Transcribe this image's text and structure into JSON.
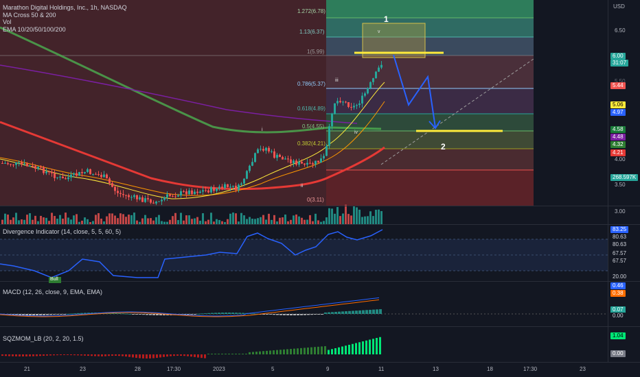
{
  "legend": {
    "symbol": "Marathon Digital Holdings, Inc., 1h, NASDAQ",
    "ma": "MA Cross 50 & 200",
    "vol": "Vol",
    "ema": "EMA 10/20/50/100/200"
  },
  "fib_levels": [
    {
      "label": "1.272(6.78)",
      "price": 6.78
    },
    {
      "label": "1.13(6.37)",
      "price": 6.37
    },
    {
      "label": "1(5.99)",
      "price": 5.99
    },
    {
      "label": "0.786(5.37)",
      "price": 5.37
    },
    {
      "label": "0.618(4.89)",
      "price": 4.89
    },
    {
      "label": "0.5(4.55)",
      "price": 4.55
    },
    {
      "label": "0.382(4.21)",
      "price": 4.21
    },
    {
      "label": "0(3.11)",
      "price": 3.11
    }
  ],
  "wave_labels": [
    "i",
    "ii",
    "iii",
    "iv",
    "v"
  ],
  "annotations": {
    "target1": "1",
    "target2": "2"
  },
  "price_axis": {
    "currency": "USD",
    "ticks": [
      "6.50",
      "5.50",
      "4.00",
      "3.50",
      "3.00"
    ],
    "tags": [
      {
        "text": "6.00",
        "bg": "#26a69a",
        "fg": "#ffffff"
      },
      {
        "text": "31:07",
        "bg": "#26a69a",
        "fg": "#ffffff"
      },
      {
        "text": "5.44",
        "bg": "#ef5350",
        "fg": "#ffffff"
      },
      {
        "text": "5.06",
        "bg": "#ffeb3b",
        "fg": "#000000"
      },
      {
        "text": "4.97",
        "bg": "#2962ff",
        "fg": "#ffffff"
      },
      {
        "text": "4.58",
        "bg": "#1b7c3a",
        "fg": "#ffffff"
      },
      {
        "text": "4.48",
        "bg": "#7b1fa2",
        "fg": "#ffffff"
      },
      {
        "text": "4.32",
        "bg": "#2e7d32",
        "fg": "#ffffff"
      },
      {
        "text": "4.21",
        "bg": "#e53935",
        "fg": "#ffffff"
      },
      {
        "text": "268.597K",
        "bg": "#26a69a",
        "fg": "#ffffff"
      }
    ]
  },
  "divergence": {
    "label": "Divergence Indicator (14, close, 5, 5, 60, 5)",
    "values": [
      "83.25",
      "80.63",
      "80.63",
      "67.57",
      "67.57",
      "20.00"
    ],
    "bull_label": "Bull"
  },
  "macd": {
    "label": "MACD (12, 26, close, 9, EMA, EMA)",
    "values": [
      "0.46",
      "0.38",
      "0.07",
      "0.00"
    ]
  },
  "sqzmom": {
    "label": "SQZMOM_LB (20, 2, 20, 1.5)",
    "values": [
      "1.04",
      "0.00"
    ]
  },
  "time_axis": [
    "21",
    "23",
    "28",
    "17:30",
    "2023",
    "5",
    "9",
    "11",
    "13",
    "18",
    "17:30",
    "23"
  ],
  "colors": {
    "background": "#131722",
    "up": "#26a69a",
    "down": "#ef5350",
    "projection": "#2962ff",
    "target_line": "#ffeb3b",
    "ema_red": "#e53935",
    "ema_green": "#4caf50",
    "ema_purple": "#7b1fa2",
    "ema_orange": "#ff9800"
  }
}
